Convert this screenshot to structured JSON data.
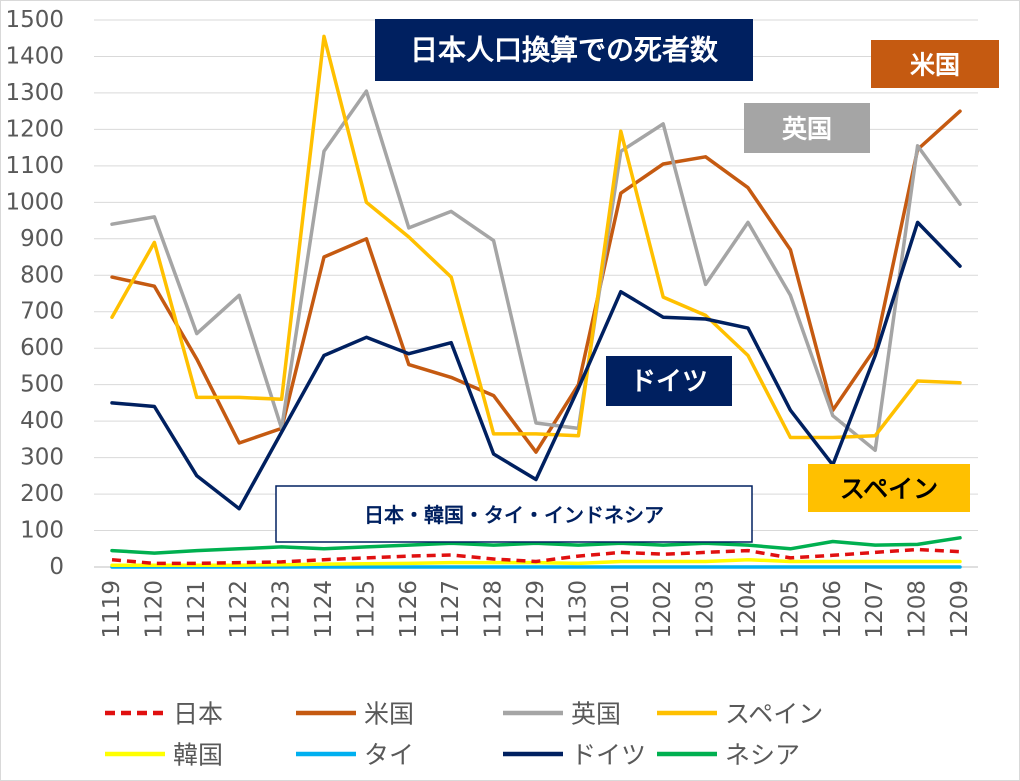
{
  "chart_data": {
    "type": "line",
    "title": "日本人口換算での死者数",
    "ylim": [
      0,
      1500
    ],
    "y_ticks": [
      0,
      100,
      200,
      300,
      400,
      500,
      600,
      700,
      800,
      900,
      1000,
      1100,
      1200,
      1300,
      1400,
      1500
    ],
    "grid": true,
    "legend_position": "bottom",
    "categories": [
      "1119",
      "1120",
      "1121",
      "1122",
      "1123",
      "1124",
      "1125",
      "1126",
      "1127",
      "1128",
      "1129",
      "1130",
      "1201",
      "1202",
      "1203",
      "1204",
      "1205",
      "1206",
      "1207",
      "1208",
      "1209"
    ],
    "series": [
      {
        "name": "日本",
        "color": "#e01010",
        "dashed": true,
        "values": [
          20,
          10,
          10,
          12,
          14,
          20,
          25,
          30,
          33,
          22,
          15,
          30,
          40,
          35,
          40,
          45,
          25,
          32,
          40,
          48,
          42
        ]
      },
      {
        "name": "米国",
        "color": "#c55a11",
        "dashed": false,
        "values": [
          795,
          770,
          570,
          340,
          380,
          850,
          900,
          555,
          520,
          470,
          315,
          500,
          1025,
          1105,
          1125,
          1040,
          870,
          430,
          600,
          1145,
          1250
        ]
      },
      {
        "name": "英国",
        "color": "#a5a5a5",
        "dashed": false,
        "values": [
          940,
          960,
          640,
          745,
          380,
          1140,
          1305,
          930,
          975,
          895,
          395,
          380,
          1140,
          1215,
          775,
          945,
          745,
          415,
          320,
          1155,
          995
        ]
      },
      {
        "name": "スペイン",
        "color": "#ffc000",
        "dashed": false,
        "values": [
          685,
          890,
          465,
          465,
          460,
          1455,
          1000,
          905,
          795,
          365,
          365,
          360,
          1195,
          740,
          690,
          580,
          355,
          355,
          360,
          510,
          505
        ]
      },
      {
        "name": "韓国",
        "color": "#ffff00",
        "dashed": false,
        "values": [
          5,
          5,
          5,
          5,
          6,
          8,
          9,
          10,
          12,
          12,
          12,
          10,
          15,
          15,
          15,
          20,
          15,
          15,
          15,
          15,
          15
        ]
      },
      {
        "name": "タイ",
        "color": "#00b0f0",
        "dashed": false,
        "values": [
          0,
          0,
          0,
          0,
          0,
          0,
          0,
          0,
          0,
          0,
          0,
          0,
          0,
          0,
          0,
          0,
          0,
          0,
          0,
          0,
          0
        ]
      },
      {
        "name": "ドイツ",
        "color": "#002060",
        "dashed": false,
        "values": [
          450,
          440,
          250,
          160,
          370,
          580,
          630,
          585,
          615,
          310,
          240,
          490,
          755,
          685,
          680,
          655,
          430,
          280,
          580,
          945,
          825
        ]
      },
      {
        "name": "ネシア",
        "color": "#00b050",
        "dashed": false,
        "values": [
          45,
          38,
          45,
          50,
          55,
          50,
          55,
          60,
          65,
          60,
          65,
          60,
          65,
          60,
          65,
          60,
          50,
          70,
          60,
          62,
          80
        ]
      }
    ],
    "annotations": [
      {
        "text": "米国",
        "bg": "#c55a11",
        "fg": "#ffffff"
      },
      {
        "text": "英国",
        "bg": "#a5a5a5",
        "fg": "#ffffff"
      },
      {
        "text": "ドイツ",
        "bg": "#002060",
        "fg": "#ffffff"
      },
      {
        "text": "スペイン",
        "bg": "#ffc000",
        "fg": "#000000"
      },
      {
        "text": "日本・韓国・タイ・インドネシア",
        "bg": "#ffffff",
        "fg": "#002060",
        "border": "#002060"
      }
    ]
  }
}
